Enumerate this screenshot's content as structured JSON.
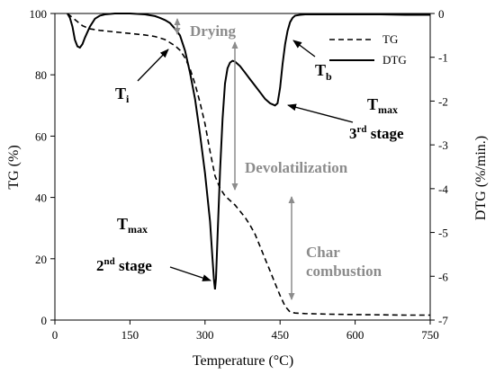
{
  "chart_data": {
    "type": "line",
    "xlabel": "Temperature (°C)",
    "ylabel_left": "TG (%)",
    "ylabel_right": "DTG (%/min.)",
    "xlim": [
      0,
      750
    ],
    "ylim_left": [
      0,
      100
    ],
    "ylim_right": [
      -7,
      0
    ],
    "x_ticks": [
      0,
      150,
      300,
      450,
      600,
      750
    ],
    "y_ticks_left": [
      0,
      20,
      40,
      60,
      80,
      100
    ],
    "y_ticks_right": [
      0,
      -1,
      -2,
      -3,
      -4,
      -5,
      -6,
      -7
    ],
    "grid": false,
    "legend_position": "top-right",
    "series": [
      {
        "name": "TG",
        "axis": "left",
        "style": "dashed",
        "x": [
          25,
          40,
          55,
          70,
          90,
          120,
          150,
          180,
          200,
          220,
          240,
          250,
          260,
          270,
          280,
          290,
          300,
          310,
          320,
          330,
          340,
          350,
          360,
          370,
          380,
          390,
          400,
          410,
          420,
          430,
          440,
          450,
          460,
          470,
          480,
          500,
          550,
          600,
          650,
          700,
          750
        ],
        "values": [
          100,
          98,
          96,
          95,
          94.5,
          94,
          93.5,
          93,
          92.5,
          91.5,
          89.5,
          88,
          85.5,
          82,
          77,
          71,
          64,
          55,
          47,
          43,
          40.5,
          39,
          37.5,
          35.5,
          33.5,
          31,
          28,
          24,
          20,
          16,
          12,
          8,
          4.5,
          2.6,
          2.3,
          2.1,
          1.9,
          1.8,
          1.7,
          1.6,
          1.6
        ]
      },
      {
        "name": "DTG",
        "axis": "right",
        "style": "solid",
        "x": [
          25,
          30,
          35,
          40,
          45,
          50,
          55,
          60,
          70,
          80,
          90,
          100,
          120,
          150,
          180,
          200,
          210,
          220,
          230,
          240,
          250,
          260,
          270,
          280,
          290,
          300,
          305,
          310,
          315,
          318,
          320,
          322,
          325,
          330,
          335,
          340,
          345,
          350,
          355,
          360,
          370,
          380,
          390,
          400,
          410,
          420,
          430,
          440,
          445,
          450,
          455,
          460,
          465,
          470,
          475,
          480,
          490,
          500,
          550,
          600,
          650,
          700,
          750
        ],
        "values": [
          0,
          -0.1,
          -0.3,
          -0.6,
          -0.75,
          -0.78,
          -0.7,
          -0.55,
          -0.3,
          -0.12,
          -0.05,
          -0.02,
          0,
          0,
          -0.02,
          -0.06,
          -0.1,
          -0.15,
          -0.22,
          -0.35,
          -0.5,
          -0.85,
          -1.35,
          -1.95,
          -2.75,
          -3.65,
          -4.2,
          -4.75,
          -5.6,
          -6.1,
          -6.3,
          -6.05,
          -5.1,
          -3.6,
          -2.4,
          -1.6,
          -1.25,
          -1.12,
          -1.08,
          -1.1,
          -1.2,
          -1.35,
          -1.5,
          -1.65,
          -1.8,
          -1.95,
          -2.05,
          -2.1,
          -2.05,
          -1.7,
          -1.15,
          -0.7,
          -0.4,
          -0.2,
          -0.1,
          -0.05,
          -0.03,
          -0.02,
          -0.02,
          -0.02,
          -0.02,
          -0.03,
          -0.03
        ]
      }
    ],
    "annotations": {
      "drying": "Drying",
      "devolatilization": "Devolatilization",
      "char_line1": "Char",
      "char_line2": "combustion",
      "ti_main": "T",
      "ti_sub": "i",
      "tb_main": "T",
      "tb_sub": "b",
      "tmax3_main": "T",
      "tmax3_sub": "max",
      "stage3_num": "3",
      "stage3_sup": "rd",
      "stage3_word": " stage",
      "tmax2_main": "T",
      "tmax2_sub": "max",
      "stage2_num": "2",
      "stage2_sup": "nd",
      "stage2_word": " stage"
    }
  }
}
